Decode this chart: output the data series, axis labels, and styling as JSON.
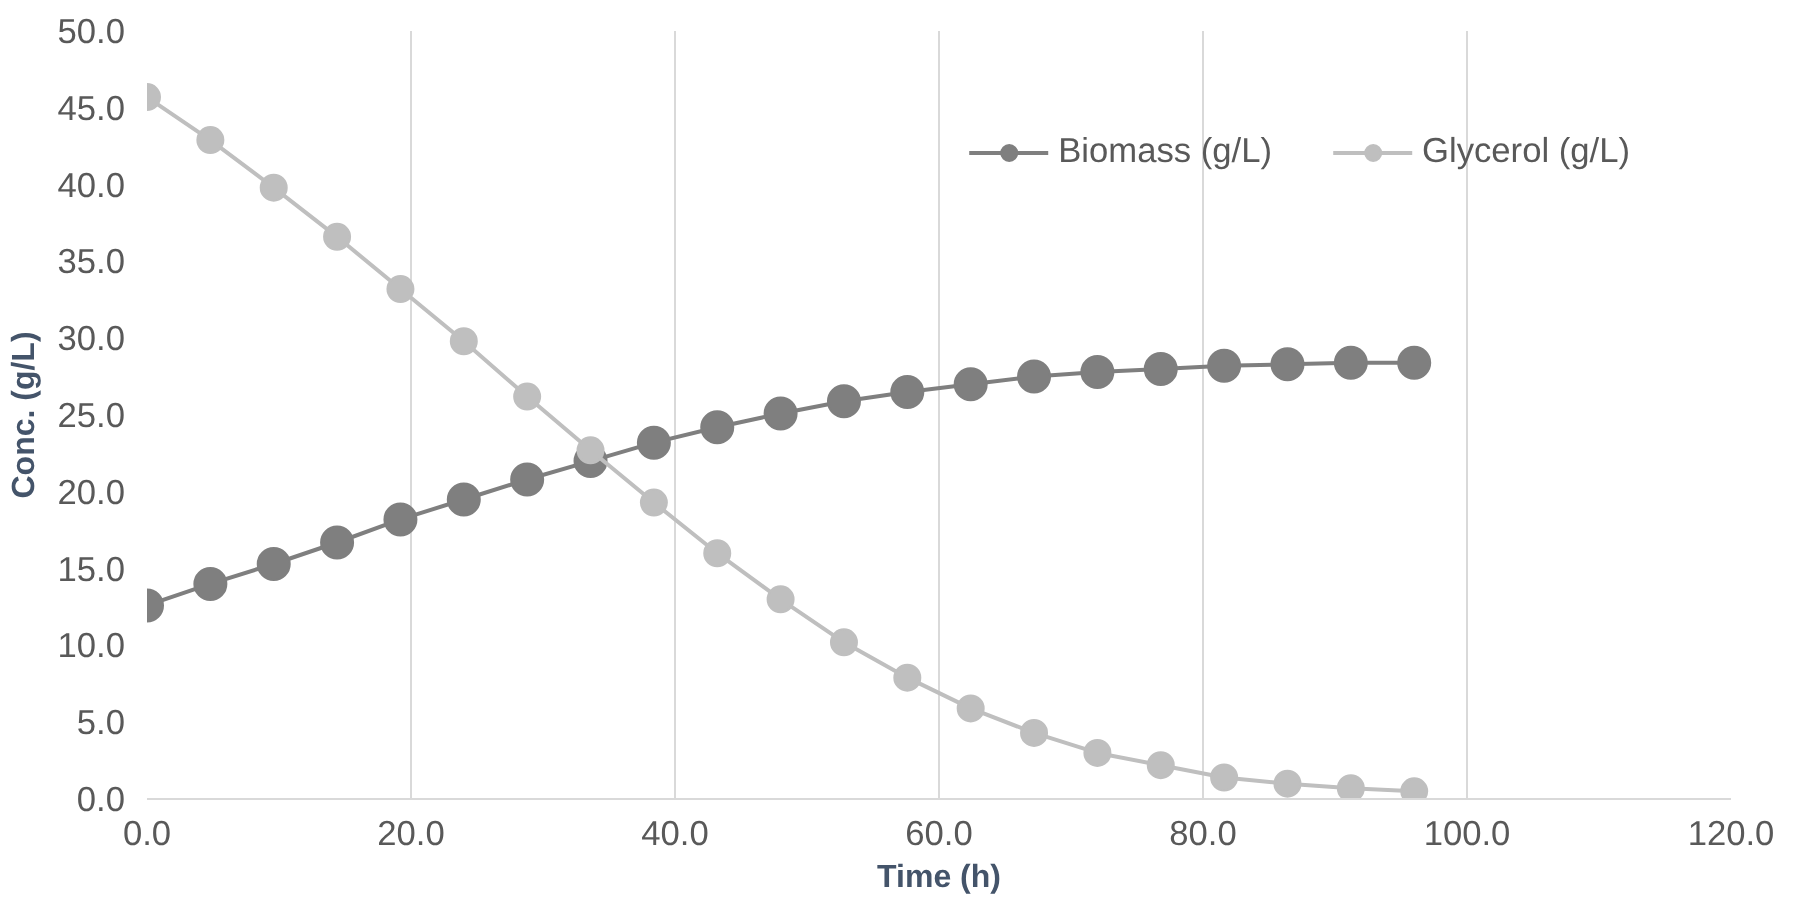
{
  "chart_data": {
    "type": "line",
    "xlabel": "Time (h)",
    "ylabel": "Conc. (g/L)",
    "x": [
      0,
      4.8,
      9.6,
      14.4,
      19.2,
      24,
      28.8,
      33.6,
      38.4,
      43.2,
      48,
      52.8,
      57.6,
      62.4,
      67.2,
      72,
      76.8,
      81.6,
      86.4,
      91.2,
      96
    ],
    "series": [
      {
        "name": "Biomass (g/L)",
        "color": "#7f7f7f",
        "values": [
          12.6,
          14.0,
          15.3,
          16.7,
          18.2,
          19.5,
          20.8,
          22.0,
          23.2,
          24.2,
          25.1,
          25.9,
          26.5,
          27.0,
          27.5,
          27.8,
          28.0,
          28.2,
          28.3,
          28.4,
          28.4
        ]
      },
      {
        "name": "Glycerol (g/L)",
        "color": "#bfbfbf",
        "values": [
          45.7,
          42.9,
          39.8,
          36.6,
          33.2,
          29.8,
          26.2,
          22.7,
          19.3,
          16.0,
          13.0,
          10.2,
          7.9,
          5.9,
          4.3,
          3.0,
          2.2,
          1.4,
          1.0,
          0.7,
          0.5
        ]
      }
    ],
    "xlim": [
      0,
      120
    ],
    "xticks": [
      {
        "value": 0,
        "label": "0.0"
      },
      {
        "value": 20,
        "label": "20.0"
      },
      {
        "value": 40,
        "label": "40.0"
      },
      {
        "value": 60,
        "label": "60.0"
      },
      {
        "value": 80,
        "label": "80.0"
      },
      {
        "value": 100,
        "label": "100.0"
      },
      {
        "value": 120,
        "label": "120.0"
      }
    ],
    "ylim": [
      0,
      50
    ],
    "yticks": [
      {
        "value": 0,
        "label": "0.0"
      },
      {
        "value": 5,
        "label": "5.0"
      },
      {
        "value": 10,
        "label": "10.0"
      },
      {
        "value": 15,
        "label": "15.0"
      },
      {
        "value": 20,
        "label": "20.0"
      },
      {
        "value": 25,
        "label": "25.0"
      },
      {
        "value": 30,
        "label": "30.0"
      },
      {
        "value": 35,
        "label": "35.0"
      },
      {
        "value": 40,
        "label": "40.0"
      },
      {
        "value": 45,
        "label": "45.0"
      },
      {
        "value": 50,
        "label": "50.0"
      }
    ],
    "grid": "x",
    "legend": "top right",
    "marker": "circle",
    "line_style": "solid"
  }
}
